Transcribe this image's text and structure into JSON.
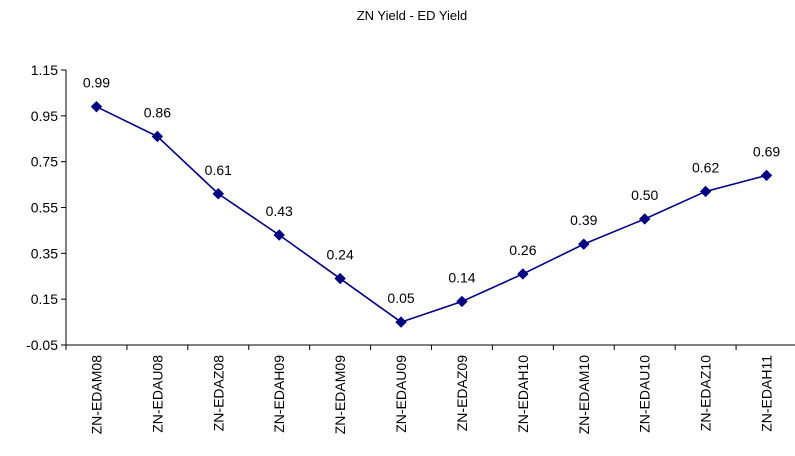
{
  "chart_data": {
    "type": "line",
    "title": "ZN Yield - ED Yield",
    "xlabel": "",
    "ylabel": "",
    "categories": [
      "ZN-EDAM08",
      "ZN-EDAU08",
      "ZN-EDAZ08",
      "ZN-EDAH09",
      "ZN-EDAM09",
      "ZN-EDAU09",
      "ZN-EDAZ09",
      "ZN-EDAH10",
      "ZN-EDAM10",
      "ZN-EDAU10",
      "ZN-EDAZ10",
      "ZN-EDAH11"
    ],
    "series": [
      {
        "values": [
          0.99,
          0.86,
          0.61,
          0.43,
          0.24,
          0.05,
          0.14,
          0.26,
          0.39,
          0.5,
          0.62,
          0.69
        ],
        "labels": [
          "0.99",
          "0.86",
          "0.61",
          "0.43",
          "0.24",
          "0.05",
          "0.14",
          "0.26",
          "0.39",
          "0.50",
          "0.62",
          "0.69"
        ],
        "color": "#000080",
        "marker": "diamond"
      }
    ],
    "yticks": [
      "-0.05",
      "0.15",
      "0.35",
      "0.55",
      "0.75",
      "0.95",
      "1.15"
    ],
    "ylim": [
      -0.05,
      1.15
    ],
    "grid": false,
    "legend": "none"
  }
}
